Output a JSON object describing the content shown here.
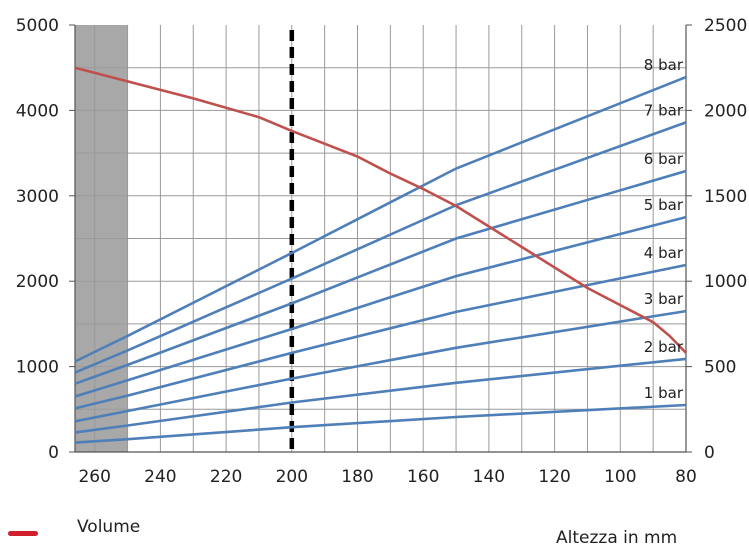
{
  "chart_data": {
    "type": "line",
    "xlabel": "Altezza in mm",
    "x_reversed": true,
    "xlim": [
      266,
      80
    ],
    "xticks": [
      260,
      240,
      220,
      200,
      180,
      160,
      140,
      120,
      100,
      80
    ],
    "ylim_left": [
      0,
      5000
    ],
    "yticks_left": [
      0,
      1000,
      2000,
      3000,
      4000,
      5000
    ],
    "ylim_right": [
      0,
      2500
    ],
    "yticks_right": [
      0,
      500,
      1000,
      1500,
      2000,
      2500
    ],
    "grid": true,
    "shaded_region": [
      266,
      250
    ],
    "reference_line_x": 200,
    "legend": [
      {
        "name": "Volume",
        "color": "#d0202e"
      }
    ],
    "series": [
      {
        "name": "8 bar",
        "axis": "left",
        "color": "#4f7fb8",
        "x": [
          266,
          250,
          200,
          150,
          80
        ],
        "y": [
          1060,
          1360,
          2330,
          3320,
          4390
        ]
      },
      {
        "name": "7 bar",
        "axis": "left",
        "color": "#4f7fb8",
        "x": [
          266,
          250,
          200,
          150,
          80
        ],
        "y": [
          930,
          1190,
          2030,
          2890,
          3860
        ]
      },
      {
        "name": "6 bar",
        "axis": "left",
        "color": "#4f7fb8",
        "x": [
          266,
          250,
          200,
          150,
          80
        ],
        "y": [
          800,
          1020,
          1740,
          2500,
          3290
        ]
      },
      {
        "name": "5 bar",
        "axis": "left",
        "color": "#4f7fb8",
        "x": [
          266,
          250,
          200,
          150,
          80
        ],
        "y": [
          650,
          840,
          1440,
          2060,
          2750
        ]
      },
      {
        "name": "4 bar",
        "axis": "left",
        "color": "#4f7fb8",
        "x": [
          266,
          250,
          200,
          150,
          80
        ],
        "y": [
          510,
          660,
          1160,
          1640,
          2190
        ]
      },
      {
        "name": "3 bar",
        "axis": "left",
        "color": "#4f7fb8",
        "x": [
          266,
          250,
          200,
          150,
          80
        ],
        "y": [
          360,
          480,
          860,
          1220,
          1650
        ]
      },
      {
        "name": "2 bar",
        "axis": "left",
        "color": "#4f7fb8",
        "x": [
          266,
          250,
          200,
          150,
          80
        ],
        "y": [
          230,
          310,
          580,
          810,
          1090
        ]
      },
      {
        "name": "1 bar",
        "axis": "left",
        "color": "#4f7fb8",
        "x": [
          266,
          250,
          200,
          150,
          80
        ],
        "y": [
          110,
          150,
          290,
          410,
          550
        ]
      },
      {
        "name": "Volume",
        "axis": "right",
        "color": "#c0504d",
        "x": [
          266,
          250,
          230,
          210,
          200,
          180,
          170,
          160,
          150,
          140,
          130,
          120,
          110,
          100,
          90,
          85,
          80
        ],
        "y": [
          2250,
          2170,
          2070,
          1960,
          1880,
          1730,
          1630,
          1540,
          1440,
          1320,
          1200,
          1080,
          960,
          860,
          760,
          680,
          580
        ]
      }
    ]
  }
}
